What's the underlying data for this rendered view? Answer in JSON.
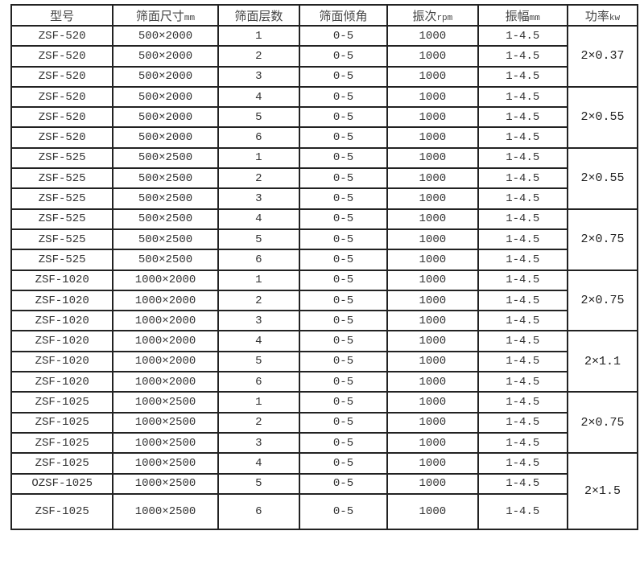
{
  "headers": [
    {
      "label": "型号",
      "unit": ""
    },
    {
      "label": "筛面尺寸",
      "unit": "mm"
    },
    {
      "label": "筛面层数",
      "unit": ""
    },
    {
      "label": "筛面倾角",
      "unit": ""
    },
    {
      "label": "振次",
      "unit": "rpm"
    },
    {
      "label": "振幅",
      "unit": "mm"
    },
    {
      "label": "功率",
      "unit": "kw"
    }
  ],
  "rows": [
    [
      "ZSF-520",
      "500×2000",
      "1",
      "0-5",
      "1000",
      "1-4.5"
    ],
    [
      "ZSF-520",
      "500×2000",
      "2",
      "0-5",
      "1000",
      "1-4.5"
    ],
    [
      "ZSF-520",
      "500×2000",
      "3",
      "0-5",
      "1000",
      "1-4.5"
    ],
    [
      "ZSF-520",
      "500×2000",
      "4",
      "0-5",
      "1000",
      "1-4.5"
    ],
    [
      "ZSF-520",
      "500×2000",
      "5",
      "0-5",
      "1000",
      "1-4.5"
    ],
    [
      "ZSF-520",
      "500×2000",
      "6",
      "0-5",
      "1000",
      "1-4.5"
    ],
    [
      "ZSF-525",
      "500×2500",
      "1",
      "0-5",
      "1000",
      "1-4.5"
    ],
    [
      "ZSF-525",
      "500×2500",
      "2",
      "0-5",
      "1000",
      "1-4.5"
    ],
    [
      "ZSF-525",
      "500×2500",
      "3",
      "0-5",
      "1000",
      "1-4.5"
    ],
    [
      "ZSF-525",
      "500×2500",
      "4",
      "0-5",
      "1000",
      "1-4.5"
    ],
    [
      "ZSF-525",
      "500×2500",
      "5",
      "0-5",
      "1000",
      "1-4.5"
    ],
    [
      "ZSF-525",
      "500×2500",
      "6",
      "0-5",
      "1000",
      "1-4.5"
    ],
    [
      "ZSF-1020",
      "1000×2000",
      "1",
      "0-5",
      "1000",
      "1-4.5"
    ],
    [
      "ZSF-1020",
      "1000×2000",
      "2",
      "0-5",
      "1000",
      "1-4.5"
    ],
    [
      "ZSF-1020",
      "1000×2000",
      "3",
      "0-5",
      "1000",
      "1-4.5"
    ],
    [
      "ZSF-1020",
      "1000×2000",
      "4",
      "0-5",
      "1000",
      "1-4.5"
    ],
    [
      "ZSF-1020",
      "1000×2000",
      "5",
      "0-5",
      "1000",
      "1-4.5"
    ],
    [
      "ZSF-1020",
      "1000×2000",
      "6",
      "0-5",
      "1000",
      "1-4.5"
    ],
    [
      "ZSF-1025",
      "1000×2500",
      "1",
      "0-5",
      "1000",
      "1-4.5"
    ],
    [
      "ZSF-1025",
      "1000×2500",
      "2",
      "0-5",
      "1000",
      "1-4.5"
    ],
    [
      "ZSF-1025",
      "1000×2500",
      "3",
      "0-5",
      "1000",
      "1-4.5"
    ],
    [
      "ZSF-1025",
      "1000×2500",
      "4",
      "0-5",
      "1000",
      "1-4.5"
    ],
    [
      "OZSF-1025",
      "1000×2500",
      "5",
      "0-5",
      "1000",
      "1-4.5"
    ],
    [
      "ZSF-1025",
      "1000×2500",
      "6",
      "0-5",
      "1000",
      "1-4.5"
    ]
  ],
  "power_groups": [
    "2×0.37",
    "2×0.55",
    "2×0.55",
    "2×0.75",
    "2×0.75",
    "2×1.1",
    "2×0.75",
    "2×1.5"
  ]
}
